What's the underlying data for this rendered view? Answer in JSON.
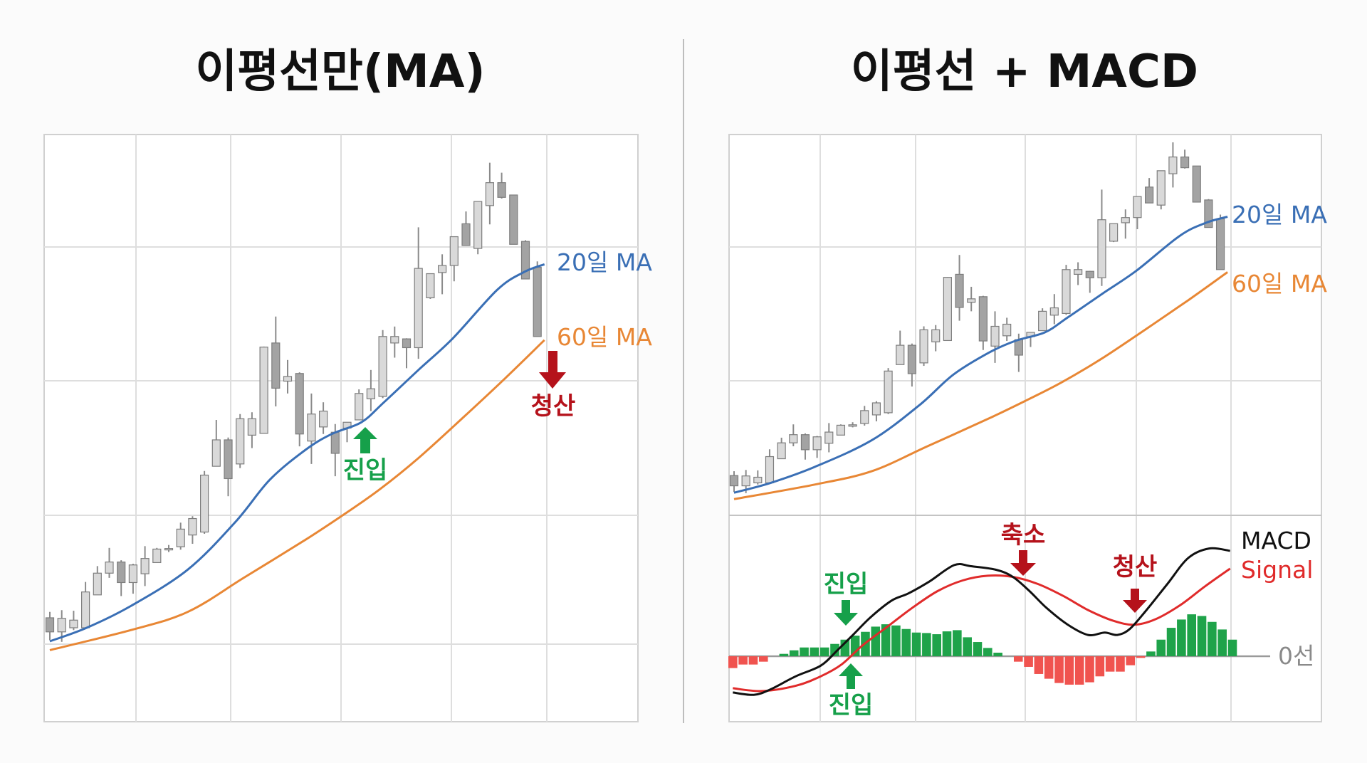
{
  "chart_data": {
    "type": "candlestick",
    "panels": [
      {
        "id": "ma_only",
        "title": "이평선만(MA)"
      },
      {
        "id": "ma_macd",
        "title": "이평선 + MACD"
      }
    ],
    "price_ylim": [
      0,
      100
    ],
    "candles_ohlc": [
      [
        17.7,
        18.7,
        13.9,
        15.3
      ],
      [
        15.3,
        19.0,
        13.6,
        17.6
      ],
      [
        16.0,
        18.9,
        15.6,
        17.3
      ],
      [
        16.0,
        23.8,
        16.0,
        22.1
      ],
      [
        21.6,
        26.5,
        21.6,
        25.3
      ],
      [
        25.3,
        29.6,
        24.5,
        27.2
      ],
      [
        27.2,
        27.5,
        21.4,
        23.7
      ],
      [
        23.7,
        26.9,
        21.8,
        26.7
      ],
      [
        25.2,
        29.9,
        23.1,
        27.8
      ],
      [
        27.1,
        29.6,
        27.1,
        29.4
      ],
      [
        29.3,
        30.1,
        28.9,
        29.5
      ],
      [
        29.8,
        33.9,
        29.3,
        32.8
      ],
      [
        31.8,
        35.0,
        30.3,
        34.6
      ],
      [
        32.3,
        42.7,
        32.0,
        42.0
      ],
      [
        43.5,
        51.4,
        43.5,
        48.0
      ],
      [
        48.0,
        48.4,
        38.4,
        41.4
      ],
      [
        43.9,
        52.4,
        43.2,
        51.6
      ],
      [
        48.8,
        52.7,
        46.6,
        51.6
      ],
      [
        49.1,
        63.9,
        49.1,
        63.8
      ],
      [
        64.5,
        69.0,
        53.7,
        56.8
      ],
      [
        58.0,
        61.6,
        55.9,
        58.8
      ],
      [
        59.3,
        59.5,
        46.9,
        49.0
      ],
      [
        47.8,
        55.9,
        43.9,
        52.4
      ],
      [
        50.2,
        54.4,
        49.0,
        52.9
      ],
      [
        49.3,
        50.7,
        41.8,
        45.7
      ],
      [
        50.0,
        51.0,
        47.6,
        51.0
      ],
      [
        51.4,
        56.6,
        51.4,
        55.9
      ],
      [
        55.0,
        59.9,
        52.9,
        56.7
      ],
      [
        55.4,
        66.7,
        55.1,
        65.6
      ],
      [
        64.5,
        67.3,
        62.0,
        65.6
      ],
      [
        65.2,
        65.3,
        60.2,
        63.7
      ],
      [
        63.7,
        84.2,
        61.8,
        77.2
      ],
      [
        72.2,
        76.3,
        72.0,
        76.3
      ],
      [
        76.5,
        79.6,
        72.8,
        77.7
      ],
      [
        77.7,
        82.6,
        75.0,
        82.6
      ],
      [
        84.8,
        86.9,
        81.1,
        81.1
      ],
      [
        80.6,
        88.6,
        79.6,
        88.6
      ],
      [
        87.9,
        95.2,
        84.7,
        91.8
      ],
      [
        91.8,
        93.5,
        89.1,
        89.3
      ],
      [
        89.7,
        89.7,
        81.3,
        81.3
      ],
      [
        81.8,
        82.0,
        75.4,
        75.4
      ],
      [
        77.4,
        78.4,
        65.6,
        65.6
      ]
    ],
    "ma20": {
      "name": "20일 MA",
      "color": "#3a6fb5",
      "points": [
        [
          0,
          13.7
        ],
        [
          3.1,
          16.0
        ],
        [
          6.8,
          19.7
        ],
        [
          11.6,
          25.9
        ],
        [
          15.6,
          34.0
        ],
        [
          18.5,
          41.2
        ],
        [
          21.5,
          46.3
        ],
        [
          23.7,
          49.0
        ],
        [
          26.2,
          51.0
        ],
        [
          28.1,
          54.4
        ],
        [
          31.0,
          59.9
        ],
        [
          33.9,
          65.3
        ],
        [
          37.6,
          73.5
        ],
        [
          39.8,
          76.5
        ],
        [
          41.6,
          77.9
        ]
      ]
    },
    "ma60": {
      "name": "60일 MA",
      "color": "#e88735",
      "points": [
        [
          0,
          12.2
        ],
        [
          6.8,
          15.6
        ],
        [
          11.6,
          18.7
        ],
        [
          16.3,
          24.5
        ],
        [
          21.5,
          31.0
        ],
        [
          24.8,
          35.4
        ],
        [
          27.7,
          39.5
        ],
        [
          31.0,
          44.9
        ],
        [
          34.7,
          51.7
        ],
        [
          38.3,
          58.5
        ],
        [
          41.6,
          65.0
        ]
      ]
    },
    "ma_only_annotations": [
      {
        "text": "진입",
        "direction": "up",
        "color": "#16a04a"
      },
      {
        "text": "청산",
        "direction": "down",
        "color": "#b5121b"
      }
    ],
    "macd": {
      "ylim": [
        -27.5,
        59.5
      ],
      "zero_label": "0선",
      "histogram": [
        -5.0,
        -3.5,
        -3.5,
        -2.3,
        0,
        1.0,
        2.5,
        3.7,
        3.7,
        3.7,
        5.2,
        7.0,
        8.7,
        10.3,
        12.5,
        13.5,
        13.0,
        11.5,
        10.0,
        9.8,
        9.3,
        10.5,
        11.0,
        8.0,
        6.0,
        3.5,
        1.5,
        0,
        -2.3,
        -4.5,
        -7.5,
        -9.5,
        -11.3,
        -12.0,
        -12.0,
        -11.0,
        -8.5,
        -6.5,
        -6.5,
        -3.8,
        -0.7,
        2.0,
        7.0,
        12.0,
        15.5,
        17.7,
        17.0,
        14.5,
        11.3,
        7.0
      ],
      "positive_color": "#1fa34a",
      "negative_color": "#f0534f",
      "macd_line": {
        "name": "MACD",
        "color": "#111111",
        "points": [
          [
            0,
            -15.3
          ],
          [
            2.05,
            -16.3
          ],
          [
            3.69,
            -14.0
          ],
          [
            6.15,
            -8.5
          ],
          [
            8.61,
            -4.0
          ],
          [
            10.25,
            2.5
          ],
          [
            11.89,
            9.5
          ],
          [
            13.52,
            16.5
          ],
          [
            15.57,
            23.5
          ],
          [
            17.21,
            26.5
          ],
          [
            19.26,
            31.5
          ],
          [
            21.72,
            38.5
          ],
          [
            23.36,
            38.0
          ],
          [
            25.82,
            36.5
          ],
          [
            27.46,
            33.5
          ],
          [
            29.1,
            27.5
          ],
          [
            30.74,
            20.5
          ],
          [
            32.79,
            13.5
          ],
          [
            34.84,
            9.0
          ],
          [
            36.48,
            10.0
          ],
          [
            37.7,
            9.0
          ],
          [
            38.93,
            11.5
          ],
          [
            40.57,
            19.5
          ],
          [
            42.62,
            30.5
          ],
          [
            44.67,
            41.5
          ],
          [
            46.72,
            45.5
          ],
          [
            48.77,
            44.5
          ]
        ]
      },
      "signal_line": {
        "name": "Signal",
        "color": "#e02b2b",
        "points": [
          [
            0,
            -13.5
          ],
          [
            2.87,
            -14.7
          ],
          [
            6.15,
            -12.5
          ],
          [
            8.61,
            -8.5
          ],
          [
            10.66,
            -3.5
          ],
          [
            12.7,
            4.5
          ],
          [
            15.16,
            12.5
          ],
          [
            17.62,
            20.5
          ],
          [
            20.08,
            27.5
          ],
          [
            22.54,
            32.0
          ],
          [
            25,
            34.0
          ],
          [
            27.46,
            33.5
          ],
          [
            29.92,
            30.5
          ],
          [
            32.38,
            25.5
          ],
          [
            34.84,
            19.5
          ],
          [
            37.3,
            15.0
          ],
          [
            39.34,
            13.3
          ],
          [
            41.39,
            15.5
          ],
          [
            43.85,
            21.5
          ],
          [
            46.31,
            29.5
          ],
          [
            48.77,
            37.0
          ]
        ]
      },
      "annotations": [
        {
          "text": "진입",
          "direction": "down",
          "color": "#16a04a"
        },
        {
          "text": "진입",
          "direction": "up",
          "color": "#16a04a"
        },
        {
          "text": "축소",
          "direction": "down",
          "color": "#b5121b"
        },
        {
          "text": "청산",
          "direction": "down",
          "color": "#b5121b"
        }
      ]
    },
    "grid": true,
    "candle_colors": {
      "bullish": "#d9d9d9",
      "bearish": "#a3a3a3"
    }
  }
}
